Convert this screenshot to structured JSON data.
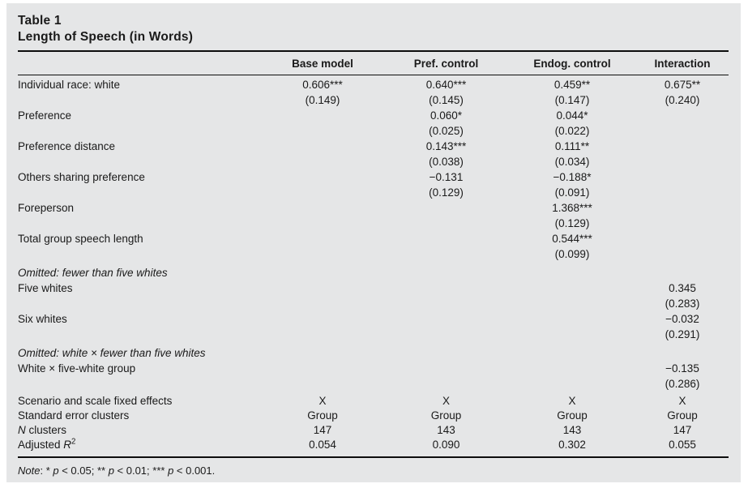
{
  "title": {
    "line1": "Table 1",
    "line2": "Length of Speech (in Words)"
  },
  "table": {
    "columns": [
      "Base model",
      "Pref. control",
      "Endog. control",
      "Interaction"
    ],
    "rows": [
      {
        "type": "coef",
        "label": "Individual race: white",
        "cells": [
          [
            "0.606***",
            "(0.149)"
          ],
          [
            "0.640***",
            "(0.145)"
          ],
          [
            "0.459**",
            "(0.147)"
          ],
          [
            "0.675**",
            "(0.240)"
          ]
        ]
      },
      {
        "type": "coef",
        "label": "Preference",
        "cells": [
          [],
          [
            "0.060*",
            "(0.025)"
          ],
          [
            "0.044*",
            "(0.022)"
          ],
          []
        ]
      },
      {
        "type": "coef",
        "label": "Preference distance",
        "cells": [
          [],
          [
            "0.143***",
            "(0.038)"
          ],
          [
            "0.111**",
            "(0.034)"
          ],
          []
        ]
      },
      {
        "type": "coef",
        "label": "Others sharing preference",
        "cells": [
          [],
          [
            "−0.131",
            "(0.129)"
          ],
          [
            "−0.188*",
            "(0.091)"
          ],
          []
        ]
      },
      {
        "type": "coef",
        "label": "Foreperson",
        "cells": [
          [],
          [],
          [
            "1.368***",
            "(0.129)"
          ],
          []
        ]
      },
      {
        "type": "coef",
        "label": "Total group speech length",
        "cells": [
          [],
          [],
          [
            "0.544***",
            "(0.099)"
          ],
          []
        ]
      },
      {
        "type": "section",
        "label": "Omitted: fewer than five whites"
      },
      {
        "type": "coef",
        "label": "Five whites",
        "cells": [
          [],
          [],
          [],
          [
            "0.345",
            "(0.283)"
          ]
        ]
      },
      {
        "type": "coef",
        "label": "Six whites",
        "cells": [
          [],
          [],
          [],
          [
            "−0.032",
            "(0.291)"
          ]
        ]
      },
      {
        "type": "section",
        "label": "Omitted: white × fewer than five whites"
      },
      {
        "type": "coef",
        "label": "White × five-white group",
        "cells": [
          [],
          [],
          [],
          [
            "−0.135",
            "(0.286)"
          ]
        ]
      },
      {
        "type": "single",
        "label": "Scenario and scale fixed effects",
        "cells": [
          "X",
          "X",
          "X",
          "X"
        ]
      },
      {
        "type": "single",
        "label": "Standard error clusters",
        "cells": [
          "Group",
          "Group",
          "Group",
          "Group"
        ]
      },
      {
        "type": "single",
        "label_segments": [
          {
            "text": "N",
            "italic": true
          },
          {
            "text": " clusters"
          }
        ],
        "cells": [
          "147",
          "143",
          "143",
          "147"
        ]
      },
      {
        "type": "single",
        "label_segments": [
          {
            "text": "Adjusted "
          },
          {
            "text": "R",
            "italic": true
          },
          {
            "text": "2",
            "sup": true
          }
        ],
        "cells": [
          "0.054",
          "0.090",
          "0.302",
          "0.055"
        ]
      }
    ]
  },
  "note": {
    "segments": [
      {
        "text": "Note",
        "italic": true
      },
      {
        "text": ": * "
      },
      {
        "text": "p",
        "italic": true
      },
      {
        "text": " < 0.05; ** "
      },
      {
        "text": "p",
        "italic": true
      },
      {
        "text": " < 0.01; *** "
      },
      {
        "text": "p",
        "italic": true
      },
      {
        "text": " < 0.001."
      }
    ]
  },
  "colors": {
    "panel_background": "#e5e6e7",
    "text": "#1a1a1a",
    "rule": "#0d0d0d"
  }
}
